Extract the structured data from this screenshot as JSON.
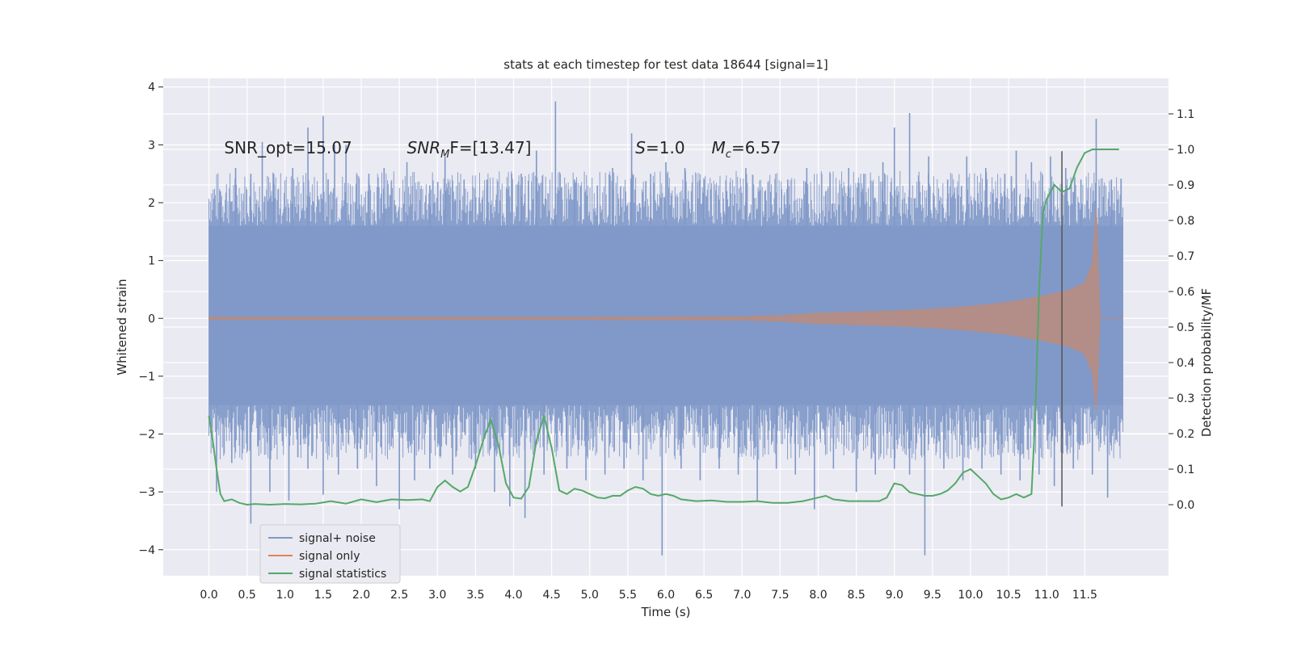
{
  "chart_data": {
    "type": "line",
    "title": "stats at each timestep for test data 18644 [signal=1]",
    "xlabel": "Time (s)",
    "ylabel": "Whitened strain",
    "ylabel_right": "Detection probability/MF",
    "xlim": [
      -0.6,
      12.6
    ],
    "ylim": [
      -4.45,
      4.15
    ],
    "ylim_right": [
      -0.2,
      1.2
    ],
    "x_ticks": [
      "0.0",
      "0.5",
      "1.0",
      "1.5",
      "2.0",
      "2.5",
      "3.0",
      "3.5",
      "4.0",
      "4.5",
      "5.0",
      "5.5",
      "6.0",
      "6.5",
      "7.0",
      "7.5",
      "8.0",
      "8.5",
      "9.0",
      "9.5",
      "10.0",
      "10.5",
      "11.0",
      "11.5"
    ],
    "y_ticks": [
      "−4",
      "−3",
      "−2",
      "−1",
      "0",
      "1",
      "2",
      "3",
      "4"
    ],
    "y_ticks_right": [
      "0.0",
      "0.1",
      "0.2",
      "0.3",
      "0.4",
      "0.5",
      "0.6",
      "0.7",
      "0.8",
      "0.9",
      "1.0",
      "1.1"
    ],
    "grid": true,
    "legend_position": "lower-left",
    "annotations": [
      {
        "text": "SNR_opt=15.07",
        "x": 0.2,
        "y": 2.95
      },
      {
        "text_prefix": "SNR",
        "text_sub": "M",
        "text_suffix": "F=[13.47]",
        "x": 2.6,
        "y": 2.95
      },
      {
        "text_prefix": "S",
        "text_suffix": "=1.0",
        "x": 5.6,
        "y": 2.95
      },
      {
        "text_prefix": "M",
        "text_sub": "c",
        "text_suffix": "=6.57",
        "x": 6.6,
        "y": 2.95
      }
    ],
    "vline": {
      "x": 11.2,
      "y_right": [
        -0.005,
        0.995
      ]
    },
    "series": [
      {
        "name": "signal+ noise",
        "color": "#7f98c8",
        "axis": "left",
        "kind": "noise_band",
        "x_range": [
          0.0,
          12.0
        ],
        "band_upper": 1.6,
        "band_lower": -1.5,
        "spikes_up": [
          [
            0.15,
            2.2
          ],
          [
            0.35,
            2.6
          ],
          [
            0.55,
            2.5
          ],
          [
            0.7,
            3.05
          ],
          [
            0.85,
            2.5
          ],
          [
            1.1,
            2.6
          ],
          [
            1.3,
            3.3
          ],
          [
            1.5,
            3.5
          ],
          [
            1.65,
            3.0
          ],
          [
            1.8,
            3.0
          ],
          [
            2.1,
            2.5
          ],
          [
            2.3,
            2.6
          ],
          [
            2.6,
            2.7
          ],
          [
            2.9,
            2.3
          ],
          [
            3.1,
            2.8
          ],
          [
            3.35,
            2.4
          ],
          [
            3.65,
            2.4
          ],
          [
            4.1,
            2.5
          ],
          [
            4.3,
            2.9
          ],
          [
            4.55,
            3.75
          ],
          [
            4.8,
            2.4
          ],
          [
            5.1,
            2.3
          ],
          [
            5.3,
            2.6
          ],
          [
            5.55,
            3.2
          ],
          [
            5.8,
            2.5
          ],
          [
            6.0,
            2.7
          ],
          [
            6.25,
            2.6
          ],
          [
            6.5,
            2.4
          ],
          [
            6.8,
            2.2
          ],
          [
            7.05,
            2.6
          ],
          [
            7.3,
            2.2
          ],
          [
            7.6,
            2.4
          ],
          [
            7.85,
            2.6
          ],
          [
            8.1,
            2.2
          ],
          [
            8.4,
            2.6
          ],
          [
            8.6,
            2.5
          ],
          [
            8.85,
            2.7
          ],
          [
            9.0,
            3.3
          ],
          [
            9.2,
            3.55
          ],
          [
            9.45,
            2.8
          ],
          [
            9.7,
            2.4
          ],
          [
            9.95,
            2.8
          ],
          [
            10.2,
            2.6
          ],
          [
            10.45,
            2.5
          ],
          [
            10.6,
            2.9
          ],
          [
            10.8,
            2.7
          ],
          [
            11.05,
            2.8
          ],
          [
            11.25,
            2.6
          ],
          [
            11.45,
            2.4
          ],
          [
            11.65,
            3.45
          ],
          [
            11.85,
            2.4
          ]
        ],
        "spikes_down": [
          [
            0.1,
            -3.0
          ],
          [
            0.3,
            -2.5
          ],
          [
            0.55,
            -3.55
          ],
          [
            0.8,
            -3.0
          ],
          [
            1.05,
            -3.15
          ],
          [
            1.3,
            -2.6
          ],
          [
            1.5,
            -3.05
          ],
          [
            1.7,
            -2.7
          ],
          [
            1.95,
            -2.6
          ],
          [
            2.2,
            -2.9
          ],
          [
            2.5,
            -3.3
          ],
          [
            2.7,
            -2.8
          ],
          [
            2.9,
            -2.6
          ],
          [
            3.2,
            -2.7
          ],
          [
            3.5,
            -2.6
          ],
          [
            3.75,
            -3.0
          ],
          [
            3.95,
            -3.25
          ],
          [
            4.15,
            -3.45
          ],
          [
            4.4,
            -2.7
          ],
          [
            4.7,
            -2.6
          ],
          [
            4.95,
            -2.8
          ],
          [
            5.2,
            -2.7
          ],
          [
            5.45,
            -2.6
          ],
          [
            5.7,
            -2.8
          ],
          [
            5.95,
            -4.1
          ],
          [
            6.2,
            -2.6
          ],
          [
            6.45,
            -2.8
          ],
          [
            6.7,
            -2.6
          ],
          [
            6.95,
            -2.7
          ],
          [
            7.2,
            -3.15
          ],
          [
            7.45,
            -2.6
          ],
          [
            7.7,
            -2.7
          ],
          [
            7.95,
            -3.3
          ],
          [
            8.2,
            -2.6
          ],
          [
            8.5,
            -3.0
          ],
          [
            8.75,
            -2.7
          ],
          [
            9.0,
            -2.6
          ],
          [
            9.2,
            -2.7
          ],
          [
            9.4,
            -4.1
          ],
          [
            9.65,
            -2.6
          ],
          [
            9.9,
            -2.8
          ],
          [
            10.15,
            -2.6
          ],
          [
            10.4,
            -2.7
          ],
          [
            10.65,
            -2.8
          ],
          [
            10.9,
            -2.7
          ],
          [
            11.1,
            -2.9
          ],
          [
            11.35,
            -2.6
          ],
          [
            11.6,
            -2.7
          ],
          [
            11.8,
            -3.1
          ]
        ]
      },
      {
        "name": "signal only",
        "color": "#dd8452",
        "axis": "left",
        "kind": "chirp_envelope",
        "x": [
          0.0,
          5.0,
          7.0,
          7.5,
          8.0,
          8.5,
          9.0,
          9.5,
          10.0,
          10.5,
          11.0,
          11.3,
          11.5,
          11.6,
          11.65,
          11.7,
          12.0
        ],
        "upper": [
          0.02,
          0.02,
          0.03,
          0.05,
          0.09,
          0.11,
          0.13,
          0.16,
          0.21,
          0.28,
          0.4,
          0.49,
          0.62,
          0.95,
          1.9,
          0.0,
          0.0
        ],
        "lower": [
          -0.02,
          -0.02,
          -0.03,
          -0.05,
          -0.09,
          -0.11,
          -0.13,
          -0.16,
          -0.21,
          -0.28,
          -0.4,
          -0.49,
          -0.62,
          -0.95,
          -1.6,
          0.0,
          0.0
        ]
      },
      {
        "name": "signal statistics",
        "color": "#55a868",
        "axis": "right",
        "x": [
          0.0,
          0.05,
          0.1,
          0.15,
          0.2,
          0.3,
          0.4,
          0.5,
          0.6,
          0.8,
          1.0,
          1.2,
          1.4,
          1.6,
          1.8,
          2.0,
          2.2,
          2.4,
          2.6,
          2.8,
          2.9,
          3.0,
          3.1,
          3.2,
          3.3,
          3.4,
          3.5,
          3.6,
          3.7,
          3.8,
          3.9,
          4.0,
          4.1,
          4.2,
          4.3,
          4.4,
          4.5,
          4.6,
          4.7,
          4.8,
          4.9,
          5.0,
          5.1,
          5.2,
          5.3,
          5.4,
          5.5,
          5.6,
          5.7,
          5.8,
          5.9,
          6.0,
          6.1,
          6.2,
          6.4,
          6.6,
          6.8,
          7.0,
          7.2,
          7.4,
          7.6,
          7.8,
          8.0,
          8.1,
          8.2,
          8.4,
          8.6,
          8.8,
          8.9,
          9.0,
          9.1,
          9.2,
          9.3,
          9.4,
          9.5,
          9.6,
          9.7,
          9.8,
          9.9,
          10.0,
          10.1,
          10.2,
          10.3,
          10.4,
          10.5,
          10.6,
          10.7,
          10.8,
          10.85,
          10.9,
          10.95,
          11.0,
          11.1,
          11.2,
          11.3,
          11.4,
          11.5,
          11.6,
          11.7,
          11.8,
          11.9,
          11.95
        ],
        "y": [
          0.25,
          0.18,
          0.1,
          0.03,
          0.01,
          0.015,
          0.005,
          0.0,
          0.002,
          0.0,
          0.002,
          0.001,
          0.003,
          0.01,
          0.003,
          0.015,
          0.007,
          0.015,
          0.013,
          0.015,
          0.01,
          0.05,
          0.068,
          0.05,
          0.037,
          0.05,
          0.11,
          0.18,
          0.24,
          0.17,
          0.06,
          0.02,
          0.017,
          0.05,
          0.18,
          0.25,
          0.16,
          0.04,
          0.03,
          0.045,
          0.04,
          0.03,
          0.02,
          0.018,
          0.025,
          0.025,
          0.04,
          0.05,
          0.045,
          0.03,
          0.025,
          0.03,
          0.025,
          0.015,
          0.01,
          0.012,
          0.008,
          0.008,
          0.01,
          0.005,
          0.005,
          0.01,
          0.02,
          0.025,
          0.015,
          0.01,
          0.01,
          0.01,
          0.02,
          0.06,
          0.055,
          0.035,
          0.03,
          0.025,
          0.025,
          0.03,
          0.04,
          0.06,
          0.09,
          0.1,
          0.08,
          0.06,
          0.03,
          0.015,
          0.02,
          0.03,
          0.02,
          0.03,
          0.25,
          0.6,
          0.82,
          0.86,
          0.9,
          0.88,
          0.89,
          0.95,
          0.99,
          1.0,
          1.0,
          1.0,
          1.0,
          1.0
        ]
      }
    ]
  }
}
